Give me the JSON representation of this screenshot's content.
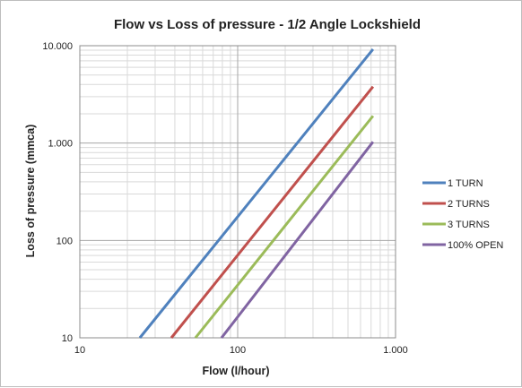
{
  "chart_data": {
    "type": "line",
    "title": "Flow vs Loss of pressure - 1/2 Angle Lockshield",
    "xlabel": "Flow (l/hour)",
    "ylabel": "Loss of pressure (mmca)",
    "x_scale": "log",
    "y_scale": "log",
    "xlim": [
      10,
      1000
    ],
    "ylim": [
      10,
      10000
    ],
    "x_ticks": [
      10,
      100,
      1000
    ],
    "x_tick_labels": [
      "10",
      "100",
      "1.000"
    ],
    "y_ticks": [
      10,
      100,
      1000,
      10000
    ],
    "y_tick_labels": [
      "10",
      "100",
      "1.000",
      "10.000"
    ],
    "grid": "major and minor",
    "legend_position": "right",
    "series": [
      {
        "name": "1 TURN",
        "color": "#4F81BD",
        "x": [
          24,
          720
        ],
        "y": [
          10,
          9200
        ]
      },
      {
        "name": "2 TURNS",
        "color": "#C0504D",
        "x": [
          38,
          720
        ],
        "y": [
          10,
          3800
        ]
      },
      {
        "name": "3 TURNS",
        "color": "#9BBB59",
        "x": [
          54,
          720
        ],
        "y": [
          10,
          1900
        ]
      },
      {
        "name": "100% OPEN",
        "color": "#8064A2",
        "x": [
          79,
          720
        ],
        "y": [
          10,
          1030
        ]
      }
    ]
  }
}
